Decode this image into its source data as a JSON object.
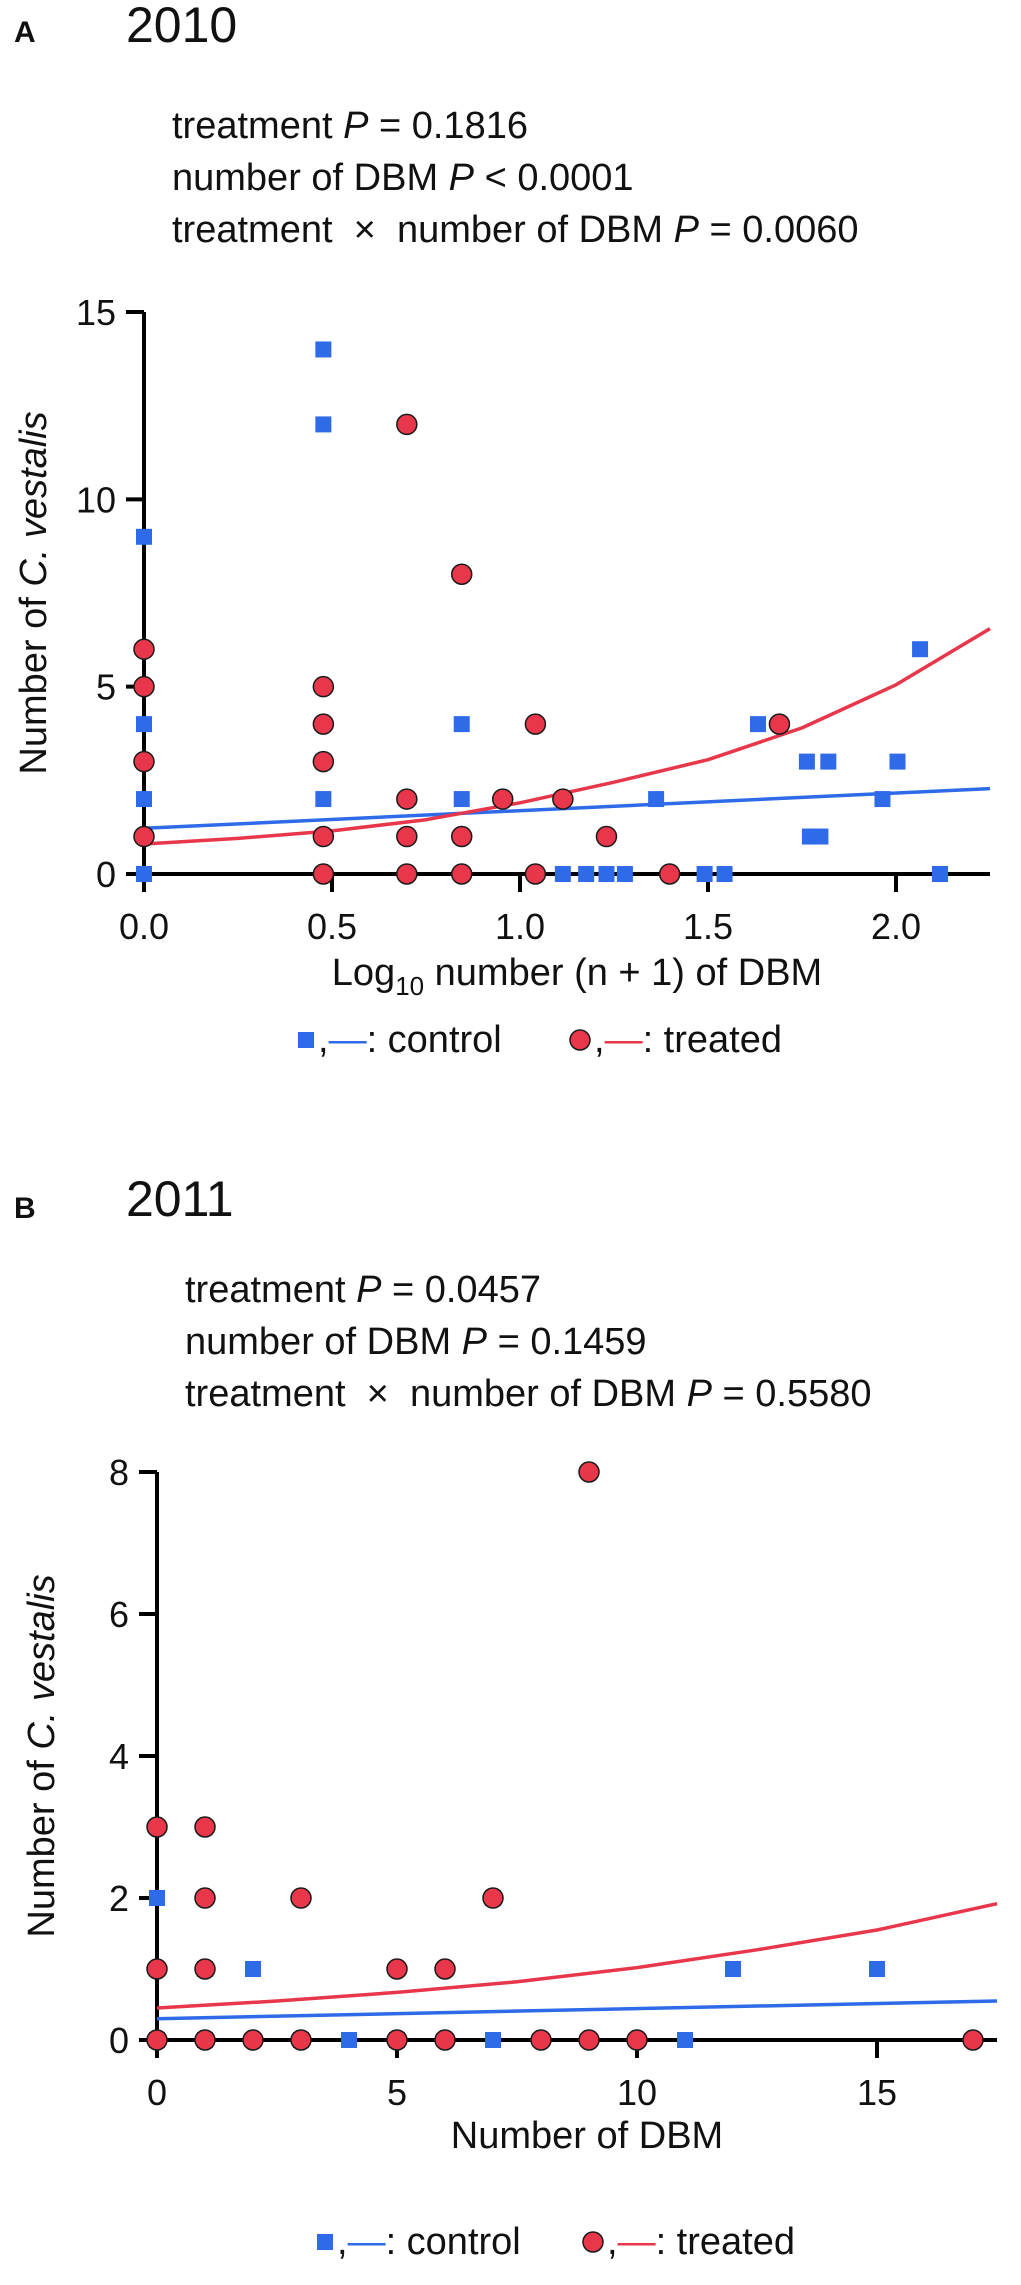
{
  "colors": {
    "control": "#2f6be8",
    "treated": "#e8364a",
    "axis": "#000000"
  },
  "chart_data": [
    {
      "type": "scatter",
      "panel": "A",
      "title": "2010",
      "stats": [
        {
          "prefix": "treatment ",
          "p": "P",
          "suffix": " = 0.1816"
        },
        {
          "prefix": "number of DBM ",
          "p": "P",
          "suffix": " < 0.0001"
        },
        {
          "prefix": "treatment  ×  number of DBM ",
          "p": "P",
          "suffix": " = 0.0060"
        }
      ],
      "xlabel": {
        "pre": "Log",
        "sub": "10",
        "post": " number (n + 1) of DBM"
      },
      "ylabel": {
        "pre": "Number of ",
        "italic": "C. vestalis"
      },
      "xlim": [
        0,
        2.25
      ],
      "ylim": [
        0,
        15
      ],
      "xticks": [
        0,
        0.5,
        1,
        1.5,
        2
      ],
      "xtick_labels": [
        "0.0",
        "0.5",
        "1.0",
        "1.5",
        "2.0"
      ],
      "yticks": [
        0,
        5,
        10,
        15
      ],
      "ytick_labels": [
        "0",
        "5",
        "10",
        "15"
      ],
      "legend": {
        "control": ",—: control",
        "treated": ",—: treated"
      },
      "series": [
        {
          "name": "control",
          "marker": "square",
          "points": [
            [
              0,
              9
            ],
            [
              0,
              4
            ],
            [
              0,
              2
            ],
            [
              0,
              0
            ],
            [
              0.477,
              14
            ],
            [
              0.477,
              12
            ],
            [
              0.477,
              3
            ],
            [
              0.477,
              2
            ],
            [
              0.845,
              4
            ],
            [
              0.845,
              2
            ],
            [
              1.114,
              0
            ],
            [
              1.176,
              0
            ],
            [
              1.23,
              0
            ],
            [
              1.279,
              0
            ],
            [
              1.362,
              2
            ],
            [
              1.491,
              0
            ],
            [
              1.544,
              0
            ],
            [
              1.633,
              4
            ],
            [
              1.763,
              3
            ],
            [
              1.771,
              1
            ],
            [
              1.799,
              1
            ],
            [
              1.82,
              3
            ],
            [
              1.964,
              2
            ],
            [
              2.004,
              3
            ],
            [
              2.064,
              6
            ],
            [
              2.117,
              0
            ]
          ],
          "fit": [
            [
              0,
              1.22
            ],
            [
              2.25,
              2.28
            ]
          ]
        },
        {
          "name": "treated",
          "marker": "circle",
          "points": [
            [
              0,
              6
            ],
            [
              0,
              5
            ],
            [
              0,
              3
            ],
            [
              0,
              1
            ],
            [
              0.477,
              5
            ],
            [
              0.477,
              4
            ],
            [
              0.477,
              3
            ],
            [
              0.477,
              1
            ],
            [
              0.477,
              0
            ],
            [
              0.699,
              12
            ],
            [
              0.699,
              2
            ],
            [
              0.699,
              1
            ],
            [
              0.699,
              0
            ],
            [
              0.845,
              8
            ],
            [
              0.845,
              1
            ],
            [
              0.845,
              0
            ],
            [
              0.954,
              2
            ],
            [
              1.041,
              4
            ],
            [
              1.041,
              0
            ],
            [
              1.114,
              2
            ],
            [
              1.23,
              1
            ],
            [
              1.398,
              0
            ],
            [
              1.69,
              4
            ]
          ],
          "fit": [
            [
              0,
              0.8
            ],
            [
              0.25,
              0.95
            ],
            [
              0.5,
              1.15
            ],
            [
              0.75,
              1.45
            ],
            [
              1.0,
              1.9
            ],
            [
              1.25,
              2.45
            ],
            [
              1.5,
              3.05
            ],
            [
              1.75,
              3.9
            ],
            [
              2.0,
              5.05
            ],
            [
              2.25,
              6.55
            ]
          ]
        }
      ]
    },
    {
      "type": "scatter",
      "panel": "B",
      "title": "2011",
      "stats": [
        {
          "prefix": "treatment ",
          "p": "P",
          "suffix": " = 0.0457"
        },
        {
          "prefix": "number of DBM ",
          "p": "P",
          "suffix": " = 0.1459"
        },
        {
          "prefix": "treatment  ×  number of DBM ",
          "p": "P",
          "suffix": " = 0.5580"
        }
      ],
      "xlabel": {
        "pre": "Number of DBM"
      },
      "ylabel": {
        "pre": "Number of ",
        "italic": "C. vestalis"
      },
      "xlim": [
        0,
        17.5
      ],
      "ylim": [
        0,
        8
      ],
      "xticks": [
        0,
        5,
        10,
        15
      ],
      "xtick_labels": [
        "0",
        "5",
        "10",
        "15"
      ],
      "yticks": [
        0,
        2,
        4,
        6,
        8
      ],
      "ytick_labels": [
        "0",
        "2",
        "4",
        "6",
        "8"
      ],
      "legend": {
        "control": ",—: control",
        "treated": ",—: treated"
      },
      "series": [
        {
          "name": "control",
          "marker": "square",
          "points": [
            [
              0,
              2
            ],
            [
              0,
              0
            ],
            [
              1,
              1
            ],
            [
              1,
              0
            ],
            [
              2,
              1
            ],
            [
              3,
              0
            ],
            [
              4,
              0
            ],
            [
              5,
              0
            ],
            [
              7,
              2
            ],
            [
              7,
              0
            ],
            [
              11,
              0
            ],
            [
              12,
              1
            ],
            [
              15,
              1
            ]
          ],
          "fit": [
            [
              0,
              0.3
            ],
            [
              17.5,
              0.55
            ]
          ]
        },
        {
          "name": "treated",
          "marker": "circle",
          "points": [
            [
              0,
              3
            ],
            [
              0,
              1
            ],
            [
              0,
              0
            ],
            [
              1,
              3
            ],
            [
              1,
              2
            ],
            [
              1,
              1
            ],
            [
              1,
              0
            ],
            [
              2,
              0
            ],
            [
              3,
              2
            ],
            [
              3,
              0
            ],
            [
              5,
              1
            ],
            [
              5,
              0
            ],
            [
              6,
              1
            ],
            [
              6,
              0
            ],
            [
              7,
              2
            ],
            [
              8,
              0
            ],
            [
              9,
              8
            ],
            [
              9,
              0
            ],
            [
              10,
              0
            ],
            [
              17,
              0
            ]
          ],
          "fit": [
            [
              0,
              0.45
            ],
            [
              2.5,
              0.55
            ],
            [
              5,
              0.67
            ],
            [
              7.5,
              0.82
            ],
            [
              10,
              1.02
            ],
            [
              12.5,
              1.27
            ],
            [
              15,
              1.55
            ],
            [
              17.5,
              1.92
            ]
          ]
        }
      ]
    }
  ]
}
